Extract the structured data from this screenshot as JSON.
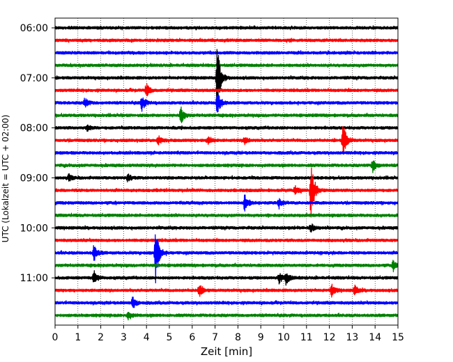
{
  "chart_data": {
    "type": "line",
    "title": "",
    "xlabel": "Zeit  [min]",
    "ylabel": "UTC (Lokalzeit = UTC + 02:00)",
    "xlim": [
      0,
      15
    ],
    "xticks": [
      0,
      1,
      2,
      3,
      4,
      5,
      6,
      7,
      8,
      9,
      10,
      11,
      12,
      13,
      14,
      15
    ],
    "ytick_labels": [
      "06:00",
      "07:00",
      "08:00",
      "09:00",
      "10:00",
      "11:00"
    ],
    "trace_interval_minutes": 15,
    "first_trace": "06:00",
    "color_cycle": [
      "#000000",
      "#ff0000",
      "#0000ff",
      "#008000"
    ],
    "grid": "vertical dotted",
    "traces": [
      {
        "start": "06:00",
        "color": "#000000",
        "events": []
      },
      {
        "start": "06:15",
        "color": "#ff0000",
        "events": []
      },
      {
        "start": "06:30",
        "color": "#0000ff",
        "events": []
      },
      {
        "start": "06:45",
        "color": "#008000",
        "events": []
      },
      {
        "start": "07:00",
        "color": "#000000",
        "events": [
          {
            "t": 7.1,
            "amp": 1.0
          }
        ]
      },
      {
        "start": "07:15",
        "color": "#ff0000",
        "events": [
          {
            "t": 4.0,
            "amp": 0.2
          }
        ]
      },
      {
        "start": "07:30",
        "color": "#0000ff",
        "events": [
          {
            "t": 1.3,
            "amp": 0.15
          },
          {
            "t": 3.8,
            "amp": 0.25
          },
          {
            "t": 7.1,
            "amp": 0.4
          }
        ]
      },
      {
        "start": "07:45",
        "color": "#008000",
        "events": [
          {
            "t": 5.5,
            "amp": 0.25
          }
        ]
      },
      {
        "start": "08:00",
        "color": "#000000",
        "events": [
          {
            "t": 1.4,
            "amp": 0.1
          }
        ]
      },
      {
        "start": "08:15",
        "color": "#ff0000",
        "events": [
          {
            "t": 4.5,
            "amp": 0.15
          },
          {
            "t": 6.7,
            "amp": 0.15
          },
          {
            "t": 8.3,
            "amp": 0.12
          },
          {
            "t": 12.6,
            "amp": 0.55
          }
        ]
      },
      {
        "start": "08:30",
        "color": "#0000ff",
        "events": []
      },
      {
        "start": "08:45",
        "color": "#008000",
        "events": [
          {
            "t": 13.9,
            "amp": 0.2
          }
        ]
      },
      {
        "start": "09:00",
        "color": "#000000",
        "events": [
          {
            "t": 0.6,
            "amp": 0.1
          },
          {
            "t": 3.2,
            "amp": 0.1
          }
        ]
      },
      {
        "start": "09:15",
        "color": "#ff0000",
        "events": [
          {
            "t": 10.5,
            "amp": 0.15
          },
          {
            "t": 11.2,
            "amp": 0.95
          }
        ]
      },
      {
        "start": "09:30",
        "color": "#0000ff",
        "events": [
          {
            "t": 8.3,
            "amp": 0.3
          },
          {
            "t": 9.8,
            "amp": 0.15
          }
        ]
      },
      {
        "start": "09:45",
        "color": "#008000",
        "events": []
      },
      {
        "start": "10:00",
        "color": "#000000",
        "events": [
          {
            "t": 11.2,
            "amp": 0.12
          }
        ]
      },
      {
        "start": "10:15",
        "color": "#ff0000",
        "events": []
      },
      {
        "start": "10:30",
        "color": "#0000ff",
        "events": [
          {
            "t": 1.7,
            "amp": 0.25
          },
          {
            "t": 4.4,
            "amp": 0.9
          }
        ]
      },
      {
        "start": "10:45",
        "color": "#008000",
        "events": [
          {
            "t": 14.8,
            "amp": 0.15
          }
        ]
      },
      {
        "start": "11:00",
        "color": "#000000",
        "events": [
          {
            "t": 1.7,
            "amp": 0.2
          },
          {
            "t": 9.8,
            "amp": 0.15
          },
          {
            "t": 10.1,
            "amp": 0.2
          }
        ]
      },
      {
        "start": "11:15",
        "color": "#ff0000",
        "events": [
          {
            "t": 6.3,
            "amp": 0.2
          },
          {
            "t": 12.1,
            "amp": 0.18
          },
          {
            "t": 13.1,
            "amp": 0.15
          }
        ]
      },
      {
        "start": "11:30",
        "color": "#0000ff",
        "events": [
          {
            "t": 3.4,
            "amp": 0.18
          }
        ]
      },
      {
        "start": "11:45",
        "color": "#008000",
        "events": [
          {
            "t": 3.2,
            "amp": 0.12
          }
        ]
      }
    ]
  }
}
